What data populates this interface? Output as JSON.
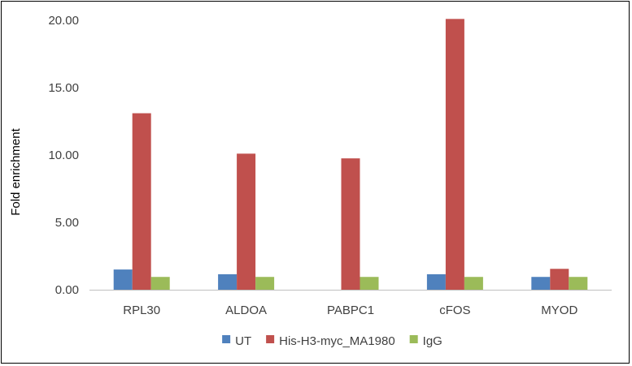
{
  "chart_data": {
    "type": "bar",
    "title": "",
    "xlabel": "",
    "ylabel": "Fold enrichment",
    "categories": [
      "RPL30",
      "ALDOA",
      "PABPC1",
      "cFOS",
      "MYOD"
    ],
    "series": [
      {
        "name": "UT",
        "color": "#4F81BD",
        "values": [
          1.5,
          1.15,
          0.0,
          1.15,
          0.95
        ]
      },
      {
        "name": "His-H3-myc_MA1980",
        "color": "#C0504D",
        "values": [
          13.1,
          10.1,
          9.75,
          20.1,
          1.55
        ]
      },
      {
        "name": "IgG",
        "color": "#9BBB59",
        "values": [
          0.95,
          0.95,
          0.95,
          0.95,
          0.95
        ]
      }
    ],
    "ylim": [
      0,
      20
    ],
    "yticks": [
      0,
      5,
      10,
      15,
      20
    ],
    "ytick_labels": [
      "0.00",
      "5.00",
      "10.00",
      "15.00",
      "20.00"
    ],
    "grid": false,
    "legend_position": "bottom"
  }
}
